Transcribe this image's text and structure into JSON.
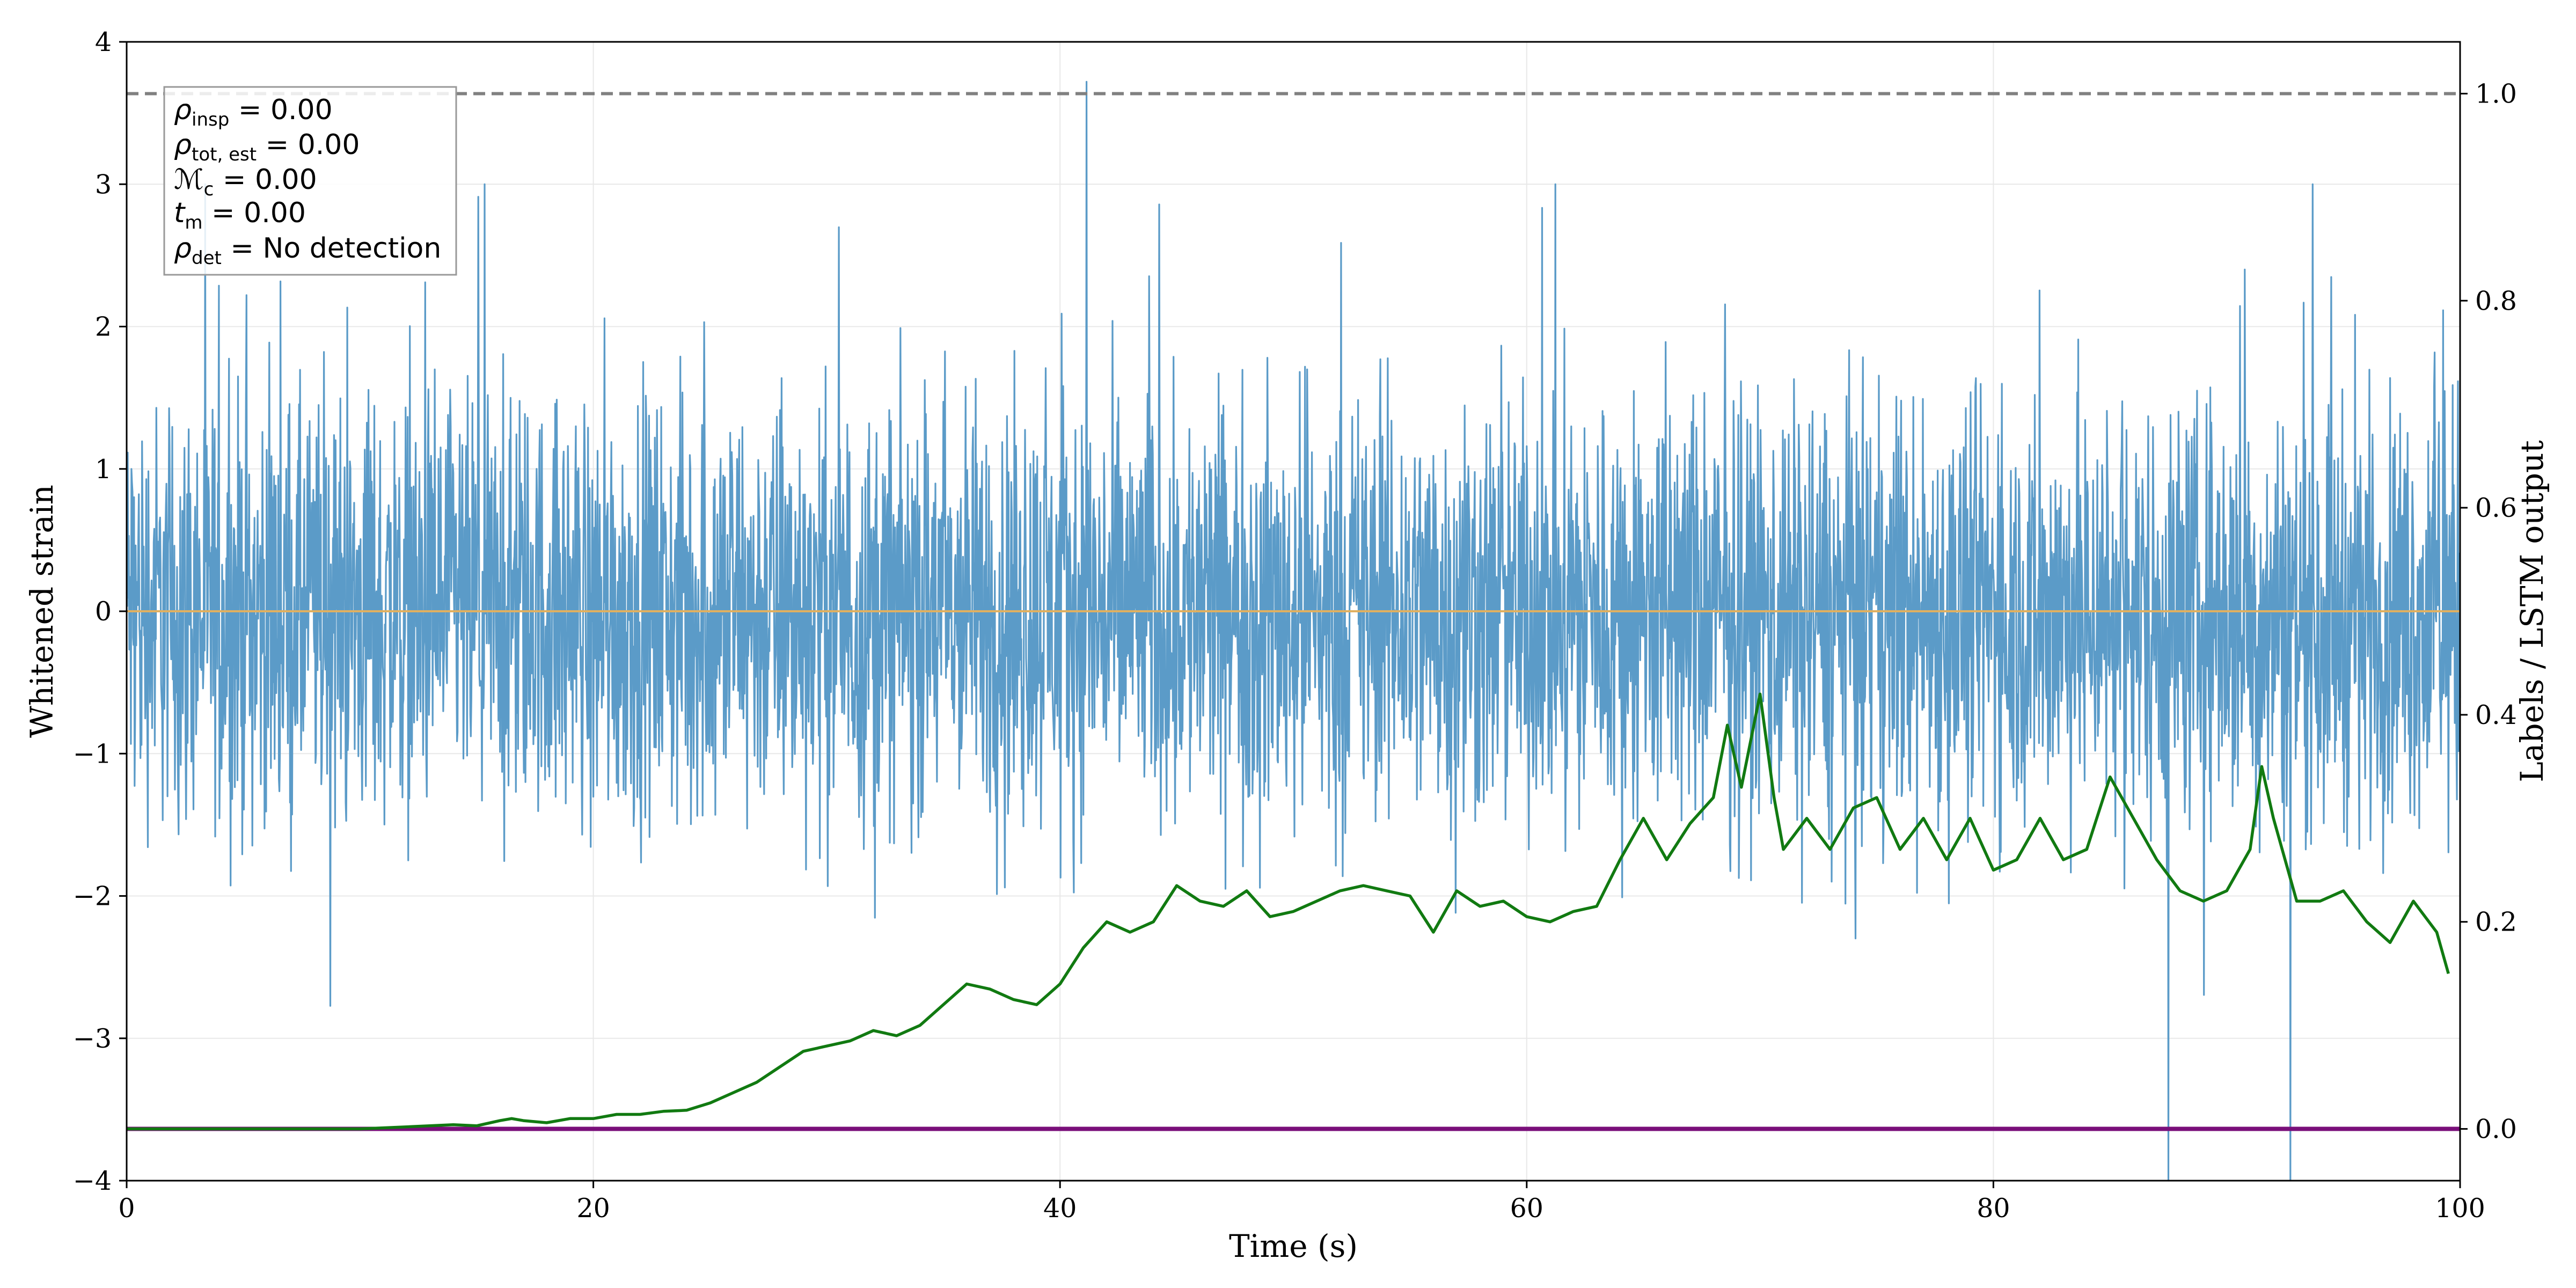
{
  "chart_data": {
    "type": "line",
    "xlabel": "Time (s)",
    "ylabel_left": "Whitened strain",
    "ylabel_right": "Labels / LSTM output",
    "xlim": [
      0,
      100
    ],
    "ylim_left": [
      -4,
      4
    ],
    "ylim_right": [
      -0.05,
      1.05
    ],
    "x_ticks": [
      0,
      20,
      40,
      60,
      80,
      100
    ],
    "x_tick_labels": [
      "0",
      "20",
      "40",
      "60",
      "80",
      "100"
    ],
    "y_left_ticks": [
      -4,
      -3,
      -2,
      -1,
      0,
      1,
      2,
      3,
      4
    ],
    "y_left_tick_labels": [
      "−4",
      "−3",
      "−2",
      "−1",
      "0",
      "1",
      "2",
      "3",
      "4"
    ],
    "y_right_ticks": [
      0.0,
      0.2,
      0.4,
      0.6,
      0.8,
      1.0
    ],
    "y_right_tick_labels": [
      "0.0",
      "0.2",
      "0.4",
      "0.6",
      "0.8",
      "1.0"
    ],
    "grid": true,
    "colors": {
      "strain": "#5b9bc8",
      "lstm": "#117a11",
      "labels": "#7a0f7a",
      "threshold": "#808080",
      "zero_line": "#e0b060"
    },
    "series": [
      {
        "name": "Whitened strain",
        "axis": "left",
        "description": "noise, amplitude envelope about ±2.5",
        "envelope": [
          -2.5,
          2.5
        ],
        "peak_max": 3.72,
        "peak_min": -4.0
      },
      {
        "name": "LSTM output",
        "axis": "right",
        "x": [
          0,
          10,
          12,
          14,
          15,
          16,
          16.5,
          17,
          18,
          19,
          20,
          21,
          22,
          23,
          24,
          25,
          26,
          27,
          28,
          29,
          30,
          31,
          32,
          33,
          34,
          35,
          36,
          37,
          38,
          39,
          40,
          41,
          42,
          43,
          44,
          45,
          46,
          47,
          48,
          49,
          50,
          51,
          52,
          53,
          54,
          55,
          56,
          57,
          58,
          59,
          60,
          61,
          62,
          63,
          64,
          65,
          66,
          67,
          68,
          68.6,
          69.2,
          70,
          70.6,
          71,
          72,
          73,
          74,
          75,
          76,
          77,
          78,
          79,
          80,
          81,
          82,
          83,
          84,
          85,
          86,
          87,
          88,
          89,
          90,
          91,
          91.5,
          92,
          93,
          94,
          95,
          96,
          97,
          98,
          99,
          99.5
        ],
        "values": [
          0.0,
          0.0,
          0.002,
          0.004,
          0.003,
          0.008,
          0.01,
          0.008,
          0.006,
          0.01,
          0.01,
          0.014,
          0.014,
          0.017,
          0.018,
          0.025,
          0.035,
          0.045,
          0.06,
          0.075,
          0.08,
          0.085,
          0.095,
          0.09,
          0.1,
          0.12,
          0.14,
          0.135,
          0.125,
          0.12,
          0.14,
          0.175,
          0.2,
          0.19,
          0.2,
          0.235,
          0.22,
          0.215,
          0.23,
          0.205,
          0.21,
          0.22,
          0.23,
          0.235,
          0.23,
          0.225,
          0.19,
          0.23,
          0.215,
          0.22,
          0.205,
          0.2,
          0.21,
          0.215,
          0.26,
          0.3,
          0.26,
          0.295,
          0.32,
          0.39,
          0.33,
          0.42,
          0.32,
          0.27,
          0.3,
          0.27,
          0.31,
          0.32,
          0.27,
          0.3,
          0.26,
          0.3,
          0.25,
          0.26,
          0.3,
          0.26,
          0.27,
          0.34,
          0.3,
          0.26,
          0.23,
          0.22,
          0.23,
          0.27,
          0.35,
          0.3,
          0.22,
          0.22,
          0.23,
          0.2,
          0.18,
          0.22,
          0.19,
          0.15
        ]
      },
      {
        "name": "Labels",
        "axis": "right",
        "x": [
          0,
          100
        ],
        "values": [
          0.0,
          0.0
        ]
      },
      {
        "name": "Detection threshold",
        "axis": "right",
        "style": "dashed",
        "x": [
          0,
          100
        ],
        "values": [
          1.0,
          1.0
        ]
      },
      {
        "name": "Zero line",
        "axis": "left",
        "x": [
          0,
          100
        ],
        "values": [
          0.0,
          0.0
        ]
      }
    ],
    "annotation": {
      "lines": [
        {
          "base": "ρ",
          "sub": "insp",
          "text": " = 0.00"
        },
        {
          "base": "ρ",
          "sub": "tot, est",
          "text": " = 0.00"
        },
        {
          "base": "ℳ",
          "sub": "c",
          "text": " = 0.00"
        },
        {
          "base": "t",
          "sub": "m",
          "text": " = 0.00"
        },
        {
          "base": "ρ",
          "sub": "det",
          "text": " = No detection"
        }
      ]
    }
  }
}
